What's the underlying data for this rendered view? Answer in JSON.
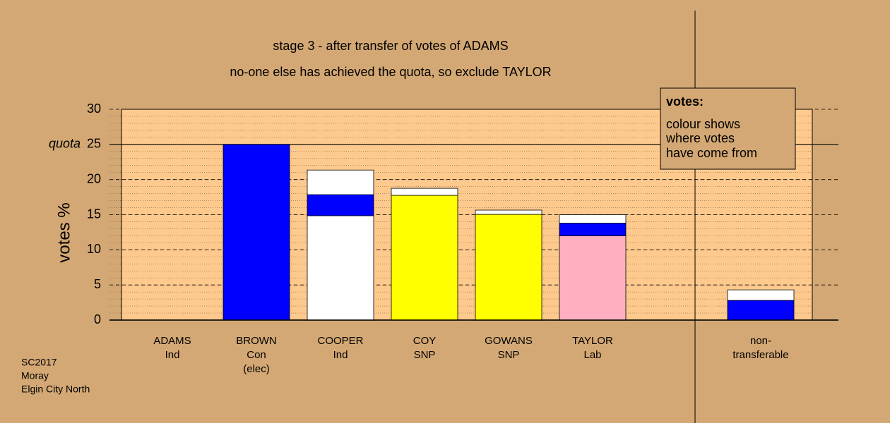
{
  "chart_data": {
    "type": "stacked-bar",
    "title": "stage 3 - after transfer of votes of ADAMS",
    "subtitle": "no-one else has achieved the quota, so exclude TAYLOR",
    "y_label": "votes %",
    "categories": [
      [
        "ADAMS",
        "Ind"
      ],
      [
        "BROWN",
        "Con",
        "(elec)"
      ],
      [
        "COOPER",
        "Ind"
      ],
      [
        "COY",
        "SNP"
      ],
      [
        "GOWANS",
        "SNP"
      ],
      [
        "TAYLOR",
        "Lab"
      ],
      null,
      [
        "non-",
        "transferable"
      ]
    ],
    "segments": [
      [],
      [
        {
          "value": 25,
          "color": "#0000ff"
        }
      ],
      [
        {
          "value": 14.85,
          "color": "#ffffff"
        },
        {
          "value": 3.0,
          "color": "#0000ff"
        },
        {
          "value": 3.5,
          "color": "#ffffff"
        }
      ],
      [
        {
          "value": 17.75,
          "color": "#ffff00"
        },
        {
          "value": 1.0,
          "color": "#ffffff"
        }
      ],
      [
        {
          "value": 15.05,
          "color": "#ffff00"
        },
        {
          "value": 0.6,
          "color": "#ffffff"
        }
      ],
      [
        {
          "value": 12.0,
          "color": "#ffb0c0"
        },
        {
          "value": 1.8,
          "color": "#0000ff"
        },
        {
          "value": 1.2,
          "color": "#ffffff"
        }
      ],
      [],
      [
        {
          "value": 2.8,
          "color": "#0000ff"
        },
        {
          "value": 1.5,
          "color": "#ffffff"
        }
      ]
    ],
    "ylim": [
      0,
      30
    ],
    "yticks": [
      0,
      5,
      10,
      15,
      20,
      25,
      30
    ],
    "minor_step": 1,
    "quota": {
      "value": 25,
      "label": "quota"
    },
    "grid": true,
    "legend": {
      "title": "votes:",
      "lines": [
        "colour shows",
        "where votes",
        "have come from"
      ]
    },
    "footer": [
      "SC2017",
      "Moray",
      "Elgin City North"
    ]
  }
}
